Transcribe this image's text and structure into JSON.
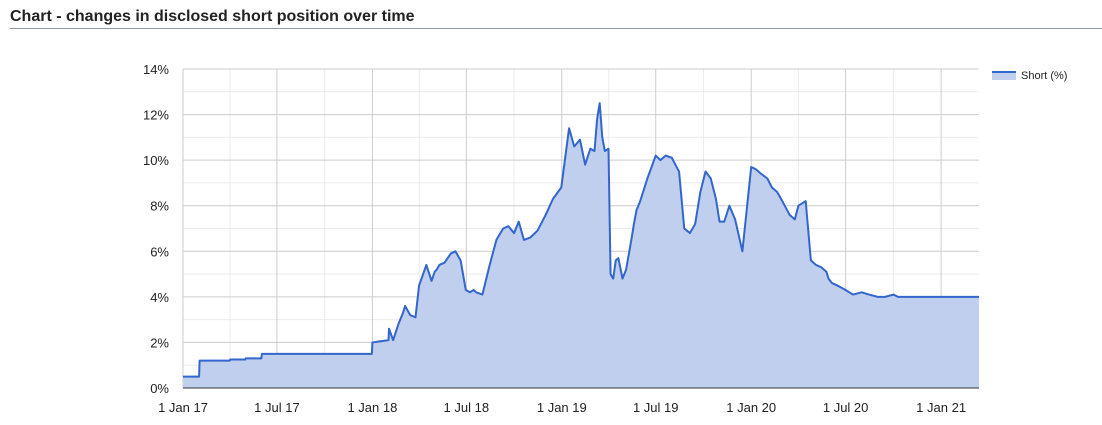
{
  "header": {
    "title": "Chart - changes in disclosed short position over time"
  },
  "colors": {
    "line": "#3366cc",
    "fill": "#c0cfee",
    "grid_major": "#cccccc",
    "grid_minor": "#ebebeb",
    "axis": "#333333"
  },
  "chart_data": {
    "type": "area",
    "title": "Chart - changes in disclosed short position over time",
    "xlabel": "",
    "ylabel": "",
    "ylim": [
      0,
      14
    ],
    "xlim": [
      "2017-01-01",
      "2021-03-15"
    ],
    "grid": true,
    "legend": "right",
    "y_ticks": [
      0,
      2,
      4,
      6,
      8,
      10,
      12,
      14
    ],
    "y_tick_labels": [
      "0%",
      "2%",
      "4%",
      "6%",
      "8%",
      "10%",
      "12%",
      "14%"
    ],
    "x_ticks": [
      {
        "date": "2017-01-01",
        "label": "1 Jan 17"
      },
      {
        "date": "2017-07-01",
        "label": "1 Jul 17"
      },
      {
        "date": "2018-01-01",
        "label": "1 Jan 18"
      },
      {
        "date": "2018-07-01",
        "label": "1 Jul 18"
      },
      {
        "date": "2019-01-01",
        "label": "1 Jan 19"
      },
      {
        "date": "2019-07-01",
        "label": "1 Jul 19"
      },
      {
        "date": "2020-01-01",
        "label": "1 Jan 20"
      },
      {
        "date": "2020-07-01",
        "label": "1 Jul 20"
      },
      {
        "date": "2021-01-01",
        "label": "1 Jan 21"
      }
    ],
    "series": [
      {
        "name": "Short (%)",
        "x": [
          "2017-01-01",
          "2017-02-01",
          "2017-02-02",
          "2017-04-01",
          "2017-04-02",
          "2017-05-01",
          "2017-05-02",
          "2017-06-01",
          "2017-06-02",
          "2017-12-31",
          "2018-01-01",
          "2018-02-01",
          "2018-02-02",
          "2018-02-10",
          "2018-02-20",
          "2018-03-01",
          "2018-03-05",
          "2018-03-15",
          "2018-03-25",
          "2018-04-01",
          "2018-04-15",
          "2018-04-25",
          "2018-05-01",
          "2018-05-05",
          "2018-05-10",
          "2018-05-20",
          "2018-06-01",
          "2018-06-10",
          "2018-06-20",
          "2018-06-30",
          "2018-07-08",
          "2018-07-15",
          "2018-07-20",
          "2018-08-01",
          "2018-08-15",
          "2018-08-28",
          "2018-09-10",
          "2018-09-20",
          "2018-10-01",
          "2018-10-10",
          "2018-10-20",
          "2018-11-01",
          "2018-11-15",
          "2018-12-01",
          "2018-12-15",
          "2018-12-31",
          "2019-01-15",
          "2019-01-25",
          "2019-02-05",
          "2019-02-15",
          "2019-02-25",
          "2019-03-05",
          "2019-03-10",
          "2019-03-15",
          "2019-03-20",
          "2019-03-25",
          "2019-04-01",
          "2019-04-05",
          "2019-04-10",
          "2019-04-15",
          "2019-04-20",
          "2019-04-28",
          "2019-05-05",
          "2019-05-15",
          "2019-05-20",
          "2019-05-25",
          "2019-06-01",
          "2019-06-15",
          "2019-07-01",
          "2019-07-10",
          "2019-07-20",
          "2019-08-01",
          "2019-08-15",
          "2019-08-25",
          "2019-09-05",
          "2019-09-15",
          "2019-09-25",
          "2019-10-05",
          "2019-10-15",
          "2019-10-25",
          "2019-11-01",
          "2019-11-10",
          "2019-11-20",
          "2019-12-01",
          "2019-12-15",
          "2020-01-01",
          "2020-01-10",
          "2020-01-20",
          "2020-02-01",
          "2020-02-10",
          "2020-02-20",
          "2020-03-01",
          "2020-03-15",
          "2020-03-25",
          "2020-04-01",
          "2020-04-15",
          "2020-04-25",
          "2020-05-05",
          "2020-05-15",
          "2020-05-25",
          "2020-05-29",
          "2020-06-05",
          "2020-06-15",
          "2020-07-01",
          "2020-07-15",
          "2020-08-01",
          "2020-08-15",
          "2020-09-01",
          "2020-09-15",
          "2020-10-01",
          "2020-10-10",
          "2020-10-20",
          "2020-11-01",
          "2020-11-10",
          "2020-11-20",
          "2020-12-01",
          "2020-12-15",
          "2021-01-01",
          "2021-01-15",
          "2021-02-01",
          "2021-02-15",
          "2021-03-01",
          "2021-03-15"
        ],
        "y": [
          0.5,
          0.5,
          1.2,
          1.2,
          1.25,
          1.25,
          1.3,
          1.3,
          1.5,
          1.5,
          2.0,
          2.1,
          2.6,
          2.1,
          2.8,
          3.3,
          3.6,
          3.2,
          3.1,
          4.5,
          5.4,
          4.7,
          5.1,
          5.2,
          5.4,
          5.5,
          5.9,
          6.0,
          5.6,
          4.3,
          4.2,
          4.3,
          4.2,
          4.1,
          5.4,
          6.5,
          7.0,
          7.1,
          6.8,
          7.3,
          6.5,
          6.6,
          6.9,
          7.6,
          8.3,
          8.8,
          11.4,
          10.6,
          10.9,
          9.8,
          10.5,
          10.4,
          11.8,
          12.5,
          11.0,
          10.4,
          10.5,
          5.0,
          4.8,
          5.6,
          5.7,
          4.8,
          5.2,
          6.5,
          7.2,
          7.8,
          8.2,
          9.2,
          10.2,
          10.0,
          10.2,
          10.1,
          9.5,
          7.0,
          6.8,
          7.2,
          8.6,
          9.5,
          9.2,
          8.3,
          7.3,
          7.3,
          8.0,
          7.4,
          6.0,
          9.7,
          9.6,
          9.4,
          9.2,
          8.8,
          8.6,
          8.2,
          7.6,
          7.4,
          8.0,
          8.2,
          5.6,
          5.4,
          5.3,
          5.1,
          4.8,
          4.6,
          4.5,
          4.3,
          4.1,
          4.2,
          4.1,
          4.0,
          4.0,
          4.1,
          4.0,
          4.0,
          4.0,
          4.0,
          4.0,
          4.0,
          4.0,
          4.0,
          4.0,
          4.0,
          4.0,
          4.0,
          4.0
        ]
      }
    ]
  }
}
